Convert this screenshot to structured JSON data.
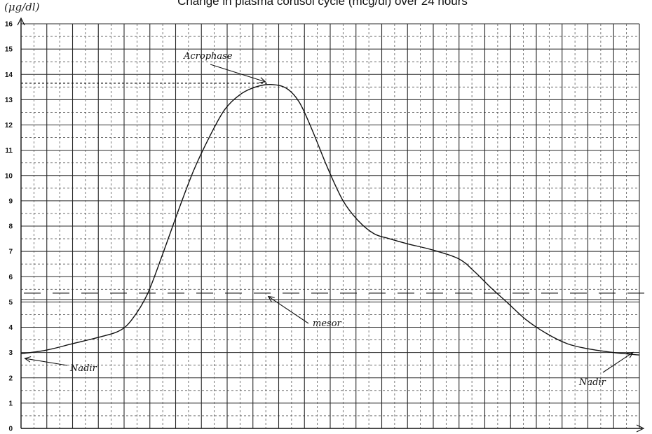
{
  "chart_data": {
    "type": "line",
    "title": "Change in plasma cortisol cycle (mcg/dl) over 24 hours",
    "ylabel": "(μg/dl)",
    "xlabel": "",
    "ylim": [
      0,
      16
    ],
    "xlim": [
      0,
      24
    ],
    "yticks": [
      "0",
      "1",
      "2",
      "3",
      "4",
      "5",
      "6",
      "7",
      "8",
      "9",
      "10",
      "11",
      "12",
      "13",
      "14",
      "15",
      "16"
    ],
    "grid": true,
    "series": [
      {
        "x": [
          0,
          1,
          2,
          3,
          3.8,
          4.3,
          4.9,
          5.5,
          6.1,
          6.7,
          7.3,
          7.9,
          8.5,
          9.1,
          9.7,
          10.3,
          10.8,
          11.3,
          11.9,
          12.5,
          13.1,
          13.7,
          14.3,
          15.0,
          16.0,
          17.0,
          17.6,
          18.2,
          18.9,
          19.6,
          20.4,
          21.2,
          22.0,
          23.0,
          24.0
        ],
        "values": [
          2.95,
          3.1,
          3.35,
          3.6,
          3.85,
          4.3,
          5.3,
          6.9,
          8.6,
          10.2,
          11.5,
          12.6,
          13.2,
          13.5,
          13.6,
          13.45,
          12.9,
          11.8,
          10.3,
          9.0,
          8.2,
          7.7,
          7.5,
          7.3,
          7.05,
          6.7,
          6.2,
          5.6,
          4.95,
          4.3,
          3.75,
          3.35,
          3.15,
          3.0,
          2.9
        ]
      }
    ],
    "mesor": 5.3,
    "acrophase": {
      "x": 9.7,
      "y": 13.65
    },
    "annotations": [
      {
        "text": "Acrophase"
      },
      {
        "text": "mesor"
      },
      {
        "text": "Nadir"
      },
      {
        "text": "Nadir"
      }
    ]
  }
}
